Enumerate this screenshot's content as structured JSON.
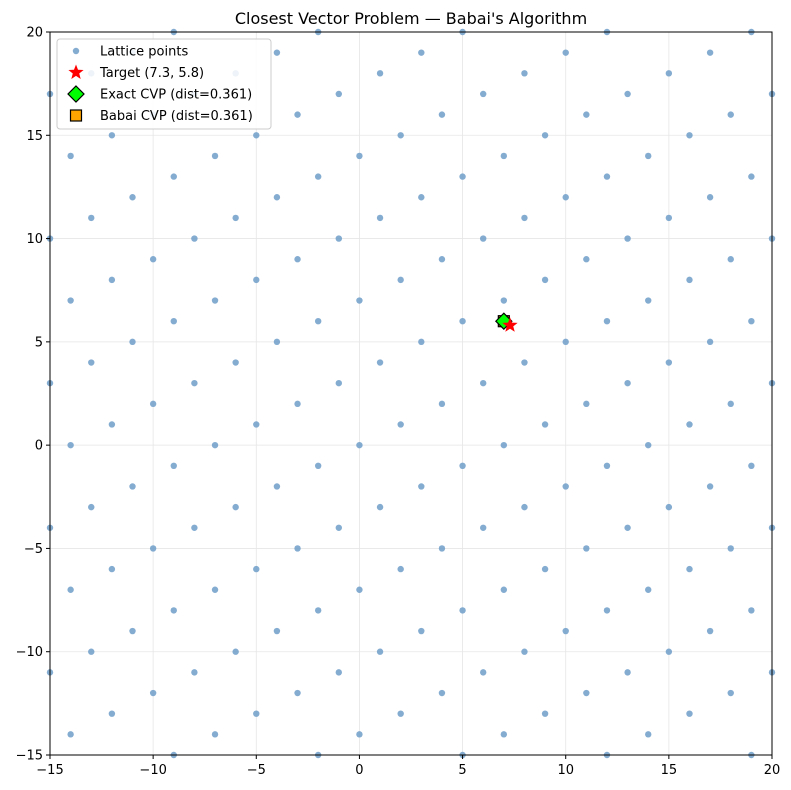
{
  "chart_data": {
    "type": "scatter",
    "title": "Closest Vector Problem — Babai's Algorithm",
    "xlabel": "",
    "ylabel": "",
    "xlim": [
      -15,
      20
    ],
    "ylim": [
      -15,
      20
    ],
    "xticks": [
      -15,
      -10,
      -5,
      0,
      5,
      10,
      15,
      20
    ],
    "yticks": [
      -15,
      -10,
      -5,
      0,
      5,
      10,
      15,
      20
    ],
    "xtick_labels": [
      "−15",
      "−10",
      "−5",
      "0",
      "5",
      "10",
      "15",
      "20"
    ],
    "ytick_labels": [
      "−15",
      "−10",
      "−5",
      "0",
      "5",
      "10",
      "15",
      "20"
    ],
    "grid": true,
    "legend_position": "top-left",
    "lattice_basis": [
      [
        2,
        1
      ],
      [
        -1,
        3
      ]
    ],
    "series": [
      {
        "name": "Lattice points",
        "marker": "circle",
        "color": "#6f9ec9",
        "generated_from": "lattice_basis"
      },
      {
        "name": "Target (7.3, 5.8)",
        "marker": "star",
        "color": "#ff0000",
        "x": [
          7.3
        ],
        "y": [
          5.8
        ]
      },
      {
        "name": "Exact CVP (dist=0.361)",
        "marker": "diamond",
        "color": "#00ff00",
        "x": [
          7
        ],
        "y": [
          6
        ]
      },
      {
        "name": "Babai CVP (dist=0.361)",
        "marker": "square",
        "color": "#ffa500",
        "x": [
          7
        ],
        "y": [
          6
        ]
      }
    ]
  }
}
